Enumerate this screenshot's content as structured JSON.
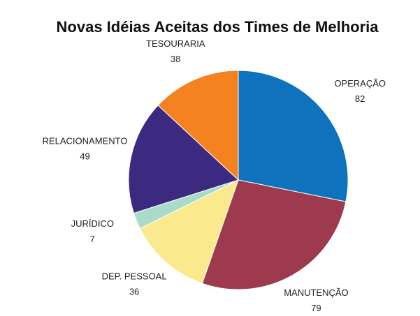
{
  "chart_data": {
    "type": "pie",
    "title": "Novas Idéias Aceitas dos Times de Melhoria",
    "categories": [
      "OPERAÇÃO",
      "MANUTENÇÃO",
      "DEP. PESSOAL",
      "JURÍDICO",
      "RELACIONAMENTO",
      "TESOURARIA"
    ],
    "values": [
      82,
      79,
      36,
      7,
      49,
      38
    ],
    "colors": [
      "#0f72bd",
      "#9e3a4e",
      "#fbe98e",
      "#a8dcc8",
      "#3c2a80",
      "#f58220"
    ]
  }
}
